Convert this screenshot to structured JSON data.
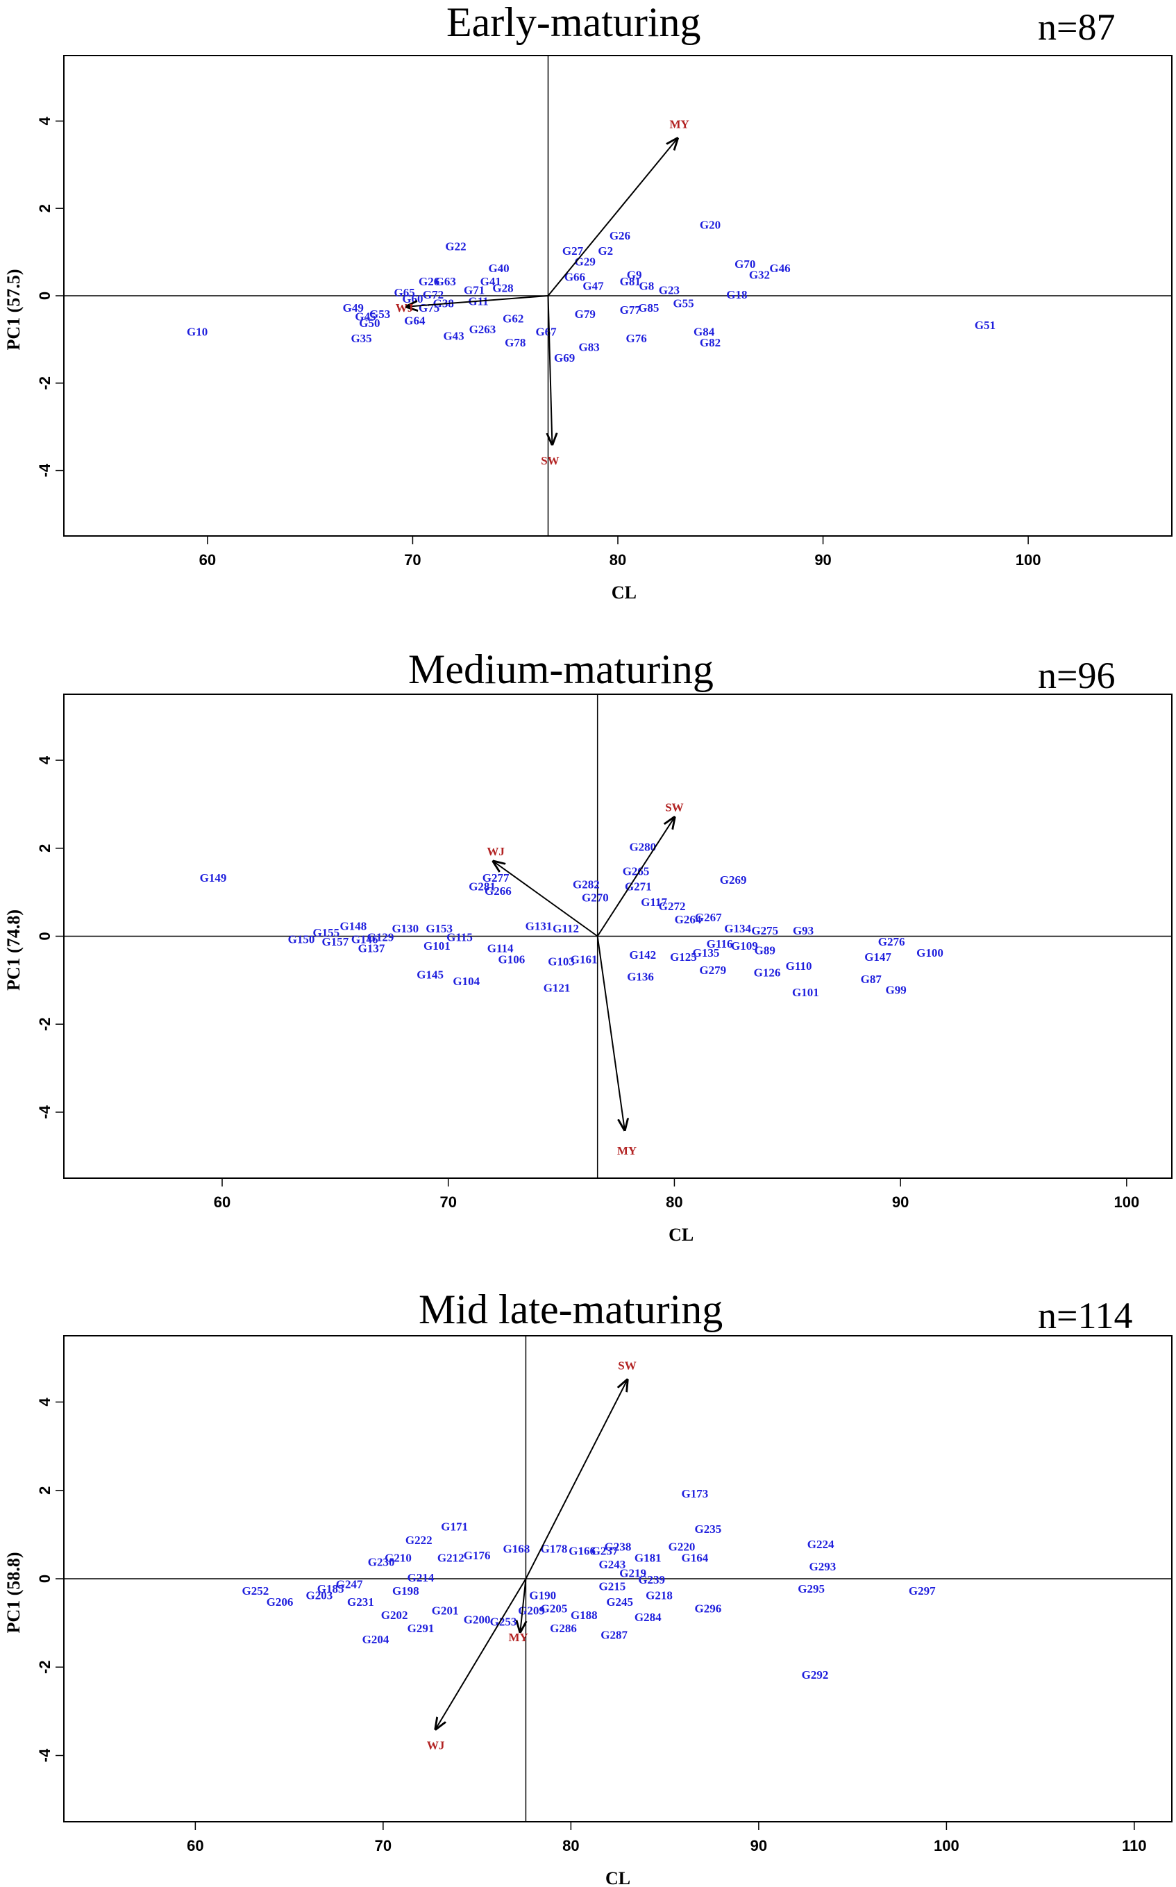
{
  "chart_data": [
    {
      "type": "scatter",
      "title": "Early-maturing",
      "n_label": "n=87",
      "xlabel": "CL",
      "ylabel": "PC1 (57.5)",
      "xlim": [
        53,
        107
      ],
      "ylim": [
        -5.5,
        5.5
      ],
      "xticks": [
        60,
        70,
        80,
        90,
        100
      ],
      "yticks": [
        -4,
        -2,
        0,
        2,
        4
      ],
      "center": [
        76.6,
        0
      ],
      "vectors": [
        {
          "name": "MY",
          "x": 82.9,
          "y": 3.6,
          "label_x": 83.0,
          "label_y": 3.9
        },
        {
          "name": "SW",
          "x": 76.8,
          "y": -3.4,
          "label_x": 76.7,
          "label_y": -3.8
        },
        {
          "name": "WJ",
          "x": 69.7,
          "y": -0.25,
          "label_x": 69.6,
          "label_y": -0.3
        }
      ],
      "points": [
        {
          "label": "G10",
          "x": 59.5,
          "y": -0.85
        },
        {
          "label": "G22",
          "x": 72.1,
          "y": 1.1
        },
        {
          "label": "G26",
          "x": 70.8,
          "y": 0.3
        },
        {
          "label": "G63",
          "x": 71.6,
          "y": 0.3
        },
        {
          "label": "G65",
          "x": 69.6,
          "y": 0.05
        },
        {
          "label": "G72",
          "x": 71.0,
          "y": 0.0
        },
        {
          "label": "G71",
          "x": 73.0,
          "y": 0.1
        },
        {
          "label": "G40",
          "x": 74.2,
          "y": 0.6
        },
        {
          "label": "G41",
          "x": 73.8,
          "y": 0.3
        },
        {
          "label": "G28",
          "x": 74.4,
          "y": 0.15
        },
        {
          "label": "G60",
          "x": 70.0,
          "y": -0.1
        },
        {
          "label": "G49",
          "x": 67.1,
          "y": -0.3
        },
        {
          "label": "G45",
          "x": 67.7,
          "y": -0.5
        },
        {
          "label": "G53",
          "x": 68.4,
          "y": -0.45
        },
        {
          "label": "G50",
          "x": 67.9,
          "y": -0.65
        },
        {
          "label": "G35",
          "x": 67.5,
          "y": -1.0
        },
        {
          "label": "G64",
          "x": 70.1,
          "y": -0.6
        },
        {
          "label": "G75",
          "x": 70.8,
          "y": -0.3
        },
        {
          "label": "G38",
          "x": 71.5,
          "y": -0.2
        },
        {
          "label": "G11",
          "x": 73.2,
          "y": -0.15
        },
        {
          "label": "G43",
          "x": 72.0,
          "y": -0.95
        },
        {
          "label": "G263",
          "x": 73.4,
          "y": -0.8
        },
        {
          "label": "G62",
          "x": 74.9,
          "y": -0.55
        },
        {
          "label": "G78",
          "x": 75.0,
          "y": -1.1
        },
        {
          "label": "G67",
          "x": 76.5,
          "y": -0.85
        },
        {
          "label": "G69",
          "x": 77.4,
          "y": -1.45
        },
        {
          "label": "G27",
          "x": 77.8,
          "y": 1.0
        },
        {
          "label": "G29",
          "x": 78.4,
          "y": 0.75
        },
        {
          "label": "G66",
          "x": 77.9,
          "y": 0.4
        },
        {
          "label": "G47",
          "x": 78.8,
          "y": 0.2
        },
        {
          "label": "G79",
          "x": 78.4,
          "y": -0.45
        },
        {
          "label": "G83",
          "x": 78.6,
          "y": -1.2
        },
        {
          "label": "G76",
          "x": 80.9,
          "y": -1.0
        },
        {
          "label": "G26",
          "x": 80.1,
          "y": 1.35
        },
        {
          "label": "G2",
          "x": 79.4,
          "y": 1.0
        },
        {
          "label": "G9",
          "x": 80.8,
          "y": 0.45
        },
        {
          "label": "G81",
          "x": 80.6,
          "y": 0.3
        },
        {
          "label": "G8",
          "x": 81.4,
          "y": 0.2
        },
        {
          "label": "G23",
          "x": 82.5,
          "y": 0.1
        },
        {
          "label": "G55",
          "x": 83.2,
          "y": -0.2
        },
        {
          "label": "G77",
          "x": 80.6,
          "y": -0.35
        },
        {
          "label": "G85",
          "x": 81.5,
          "y": -0.3
        },
        {
          "label": "G20",
          "x": 84.5,
          "y": 1.6
        },
        {
          "label": "G70",
          "x": 86.2,
          "y": 0.7
        },
        {
          "label": "G46",
          "x": 87.9,
          "y": 0.6
        },
        {
          "label": "G32",
          "x": 86.9,
          "y": 0.45
        },
        {
          "label": "G18",
          "x": 85.8,
          "y": 0.0
        },
        {
          "label": "G84",
          "x": 84.2,
          "y": -0.85
        },
        {
          "label": "G82",
          "x": 84.5,
          "y": -1.1
        },
        {
          "label": "G51",
          "x": 97.9,
          "y": -0.7
        }
      ]
    },
    {
      "type": "scatter",
      "title": "Medium-maturing",
      "n_label": "n=96",
      "xlabel": "CL",
      "ylabel": "PC1 (74.8)",
      "xlim": [
        53,
        102
      ],
      "ylim": [
        -5.5,
        5.5
      ],
      "xticks": [
        60,
        70,
        80,
        90,
        100
      ],
      "yticks": [
        -4,
        -2,
        0,
        2,
        4
      ],
      "center": [
        76.6,
        0
      ],
      "vectors": [
        {
          "name": "SW",
          "x": 80.0,
          "y": 2.7,
          "label_x": 80.0,
          "label_y": 2.9
        },
        {
          "name": "WJ",
          "x": 72.0,
          "y": 1.7,
          "label_x": 72.1,
          "label_y": 1.9
        },
        {
          "name": "MY",
          "x": 77.8,
          "y": -4.4,
          "label_x": 77.9,
          "label_y": -4.9
        }
      ],
      "points": [
        {
          "label": "G149",
          "x": 59.6,
          "y": 1.3
        },
        {
          "label": "G150",
          "x": 63.5,
          "y": -0.1
        },
        {
          "label": "G155",
          "x": 64.6,
          "y": 0.05
        },
        {
          "label": "G157",
          "x": 65.0,
          "y": -0.15
        },
        {
          "label": "G148",
          "x": 65.8,
          "y": 0.2
        },
        {
          "label": "G146",
          "x": 66.3,
          "y": -0.1
        },
        {
          "label": "G129",
          "x": 67.0,
          "y": -0.05
        },
        {
          "label": "G137",
          "x": 66.6,
          "y": -0.3
        },
        {
          "label": "G130",
          "x": 68.1,
          "y": 0.15
        },
        {
          "label": "G153",
          "x": 69.6,
          "y": 0.15
        },
        {
          "label": "G101",
          "x": 69.5,
          "y": -0.25
        },
        {
          "label": "G115",
          "x": 70.5,
          "y": -0.05
        },
        {
          "label": "G145",
          "x": 69.2,
          "y": -0.9
        },
        {
          "label": "G104",
          "x": 70.8,
          "y": -1.05
        },
        {
          "label": "G277",
          "x": 72.1,
          "y": 1.3
        },
        {
          "label": "G281",
          "x": 71.5,
          "y": 1.1
        },
        {
          "label": "G266",
          "x": 72.2,
          "y": 1.0
        },
        {
          "label": "G131",
          "x": 74.0,
          "y": 0.2
        },
        {
          "label": "G114",
          "x": 72.3,
          "y": -0.3
        },
        {
          "label": "G106",
          "x": 72.8,
          "y": -0.55
        },
        {
          "label": "G112",
          "x": 75.2,
          "y": 0.15
        },
        {
          "label": "G103",
          "x": 75.0,
          "y": -0.6
        },
        {
          "label": "G161",
          "x": 76.0,
          "y": -0.55
        },
        {
          "label": "G121",
          "x": 74.8,
          "y": -1.2
        },
        {
          "label": "G282",
          "x": 76.1,
          "y": 1.15
        },
        {
          "label": "G270",
          "x": 76.5,
          "y": 0.85
        },
        {
          "label": "G280",
          "x": 78.6,
          "y": 2.0
        },
        {
          "label": "G265",
          "x": 78.3,
          "y": 1.45
        },
        {
          "label": "G271",
          "x": 78.4,
          "y": 1.1
        },
        {
          "label": "G117",
          "x": 79.1,
          "y": 0.75
        },
        {
          "label": "G272",
          "x": 79.9,
          "y": 0.65
        },
        {
          "label": "G264",
          "x": 80.6,
          "y": 0.35
        },
        {
          "label": "G267",
          "x": 81.5,
          "y": 0.4
        },
        {
          "label": "G269",
          "x": 82.6,
          "y": 1.25
        },
        {
          "label": "G134",
          "x": 82.8,
          "y": 0.15
        },
        {
          "label": "G275",
          "x": 84.0,
          "y": 0.1
        },
        {
          "label": "G136",
          "x": 78.5,
          "y": -0.95
        },
        {
          "label": "G142",
          "x": 78.6,
          "y": -0.45
        },
        {
          "label": "G125",
          "x": 80.4,
          "y": -0.5
        },
        {
          "label": "G135",
          "x": 81.4,
          "y": -0.4
        },
        {
          "label": "G116",
          "x": 82.0,
          "y": -0.2
        },
        {
          "label": "G109",
          "x": 83.1,
          "y": -0.25
        },
        {
          "label": "G89",
          "x": 84.0,
          "y": -0.35
        },
        {
          "label": "G126",
          "x": 84.1,
          "y": -0.85
        },
        {
          "label": "G279",
          "x": 81.7,
          "y": -0.8
        },
        {
          "label": "G93",
          "x": 85.7,
          "y": 0.1
        },
        {
          "label": "G110",
          "x": 85.5,
          "y": -0.7
        },
        {
          "label": "G101",
          "x": 85.8,
          "y": -1.3
        },
        {
          "label": "G276",
          "x": 89.6,
          "y": -0.15
        },
        {
          "label": "G147",
          "x": 89.0,
          "y": -0.5
        },
        {
          "label": "G100",
          "x": 91.3,
          "y": -0.4
        },
        {
          "label": "G87",
          "x": 88.7,
          "y": -1.0
        },
        {
          "label": "G99",
          "x": 89.8,
          "y": -1.25
        }
      ]
    },
    {
      "type": "scatter",
      "title": "Mid late-maturing",
      "n_label": "n=114",
      "xlabel": "CL",
      "ylabel": "PC1 (58.8)",
      "xlim": [
        53,
        112
      ],
      "ylim": [
        -5.5,
        5.5
      ],
      "xticks": [
        60,
        70,
        80,
        90,
        100,
        110
      ],
      "yticks": [
        -4,
        -2,
        0,
        2,
        4
      ],
      "center": [
        77.6,
        0
      ],
      "vectors": [
        {
          "name": "SW",
          "x": 83.0,
          "y": 4.5,
          "label_x": 83.0,
          "label_y": 4.8
        },
        {
          "name": "WJ",
          "x": 72.8,
          "y": -3.4,
          "label_x": 72.8,
          "label_y": -3.8
        },
        {
          "name": "MY",
          "x": 77.3,
          "y": -1.2,
          "label_x": 77.2,
          "label_y": -1.35
        }
      ],
      "points": [
        {
          "label": "G252",
          "x": 63.2,
          "y": -0.3
        },
        {
          "label": "G206",
          "x": 64.5,
          "y": -0.55
        },
        {
          "label": "G203",
          "x": 66.6,
          "y": -0.4
        },
        {
          "label": "G185",
          "x": 67.2,
          "y": -0.25
        },
        {
          "label": "G247",
          "x": 68.2,
          "y": -0.15
        },
        {
          "label": "G231",
          "x": 68.8,
          "y": -0.55
        },
        {
          "label": "G204",
          "x": 69.6,
          "y": -1.4
        },
        {
          "label": "G202",
          "x": 70.6,
          "y": -0.85
        },
        {
          "label": "G291",
          "x": 72.0,
          "y": -1.15
        },
        {
          "label": "G222",
          "x": 71.9,
          "y": 0.85
        },
        {
          "label": "G171",
          "x": 73.8,
          "y": 1.15
        },
        {
          "label": "G210",
          "x": 70.8,
          "y": 0.45
        },
        {
          "label": "G230",
          "x": 69.9,
          "y": 0.35
        },
        {
          "label": "G198",
          "x": 71.2,
          "y": -0.3
        },
        {
          "label": "G214",
          "x": 72.0,
          "y": 0.0
        },
        {
          "label": "G201",
          "x": 73.3,
          "y": -0.75
        },
        {
          "label": "G200",
          "x": 75.0,
          "y": -0.95
        },
        {
          "label": "G253",
          "x": 76.4,
          "y": -1.0
        },
        {
          "label": "G212",
          "x": 73.6,
          "y": 0.45
        },
        {
          "label": "G176",
          "x": 75.0,
          "y": 0.5
        },
        {
          "label": "G168",
          "x": 77.1,
          "y": 0.65
        },
        {
          "label": "G178",
          "x": 79.1,
          "y": 0.65
        },
        {
          "label": "G166",
          "x": 80.6,
          "y": 0.6
        },
        {
          "label": "G190",
          "x": 78.5,
          "y": -0.4
        },
        {
          "label": "G209",
          "x": 77.9,
          "y": -0.75
        },
        {
          "label": "G205",
          "x": 79.1,
          "y": -0.7
        },
        {
          "label": "G188",
          "x": 80.7,
          "y": -0.85
        },
        {
          "label": "G286",
          "x": 79.6,
          "y": -1.15
        },
        {
          "label": "G287",
          "x": 82.3,
          "y": -1.3
        },
        {
          "label": "G238",
          "x": 82.5,
          "y": 0.7
        },
        {
          "label": "G237",
          "x": 81.8,
          "y": 0.6
        },
        {
          "label": "G181",
          "x": 84.1,
          "y": 0.45
        },
        {
          "label": "G220",
          "x": 85.9,
          "y": 0.7
        },
        {
          "label": "G164",
          "x": 86.6,
          "y": 0.45
        },
        {
          "label": "G243",
          "x": 82.2,
          "y": 0.3
        },
        {
          "label": "G219",
          "x": 83.3,
          "y": 0.1
        },
        {
          "label": "G239",
          "x": 84.3,
          "y": -0.05
        },
        {
          "label": "G215",
          "x": 82.2,
          "y": -0.2
        },
        {
          "label": "G218",
          "x": 84.7,
          "y": -0.4
        },
        {
          "label": "G245",
          "x": 82.6,
          "y": -0.55
        },
        {
          "label": "G284",
          "x": 84.1,
          "y": -0.9
        },
        {
          "label": "G296",
          "x": 87.3,
          "y": -0.7
        },
        {
          "label": "G173",
          "x": 86.6,
          "y": 1.9
        },
        {
          "label": "G235",
          "x": 87.3,
          "y": 1.1
        },
        {
          "label": "G224",
          "x": 93.3,
          "y": 0.75
        },
        {
          "label": "G293",
          "x": 93.4,
          "y": 0.25
        },
        {
          "label": "G295",
          "x": 92.8,
          "y": -0.25
        },
        {
          "label": "G297",
          "x": 98.7,
          "y": -0.3
        },
        {
          "label": "G292",
          "x": 93.0,
          "y": -2.2
        }
      ]
    }
  ]
}
